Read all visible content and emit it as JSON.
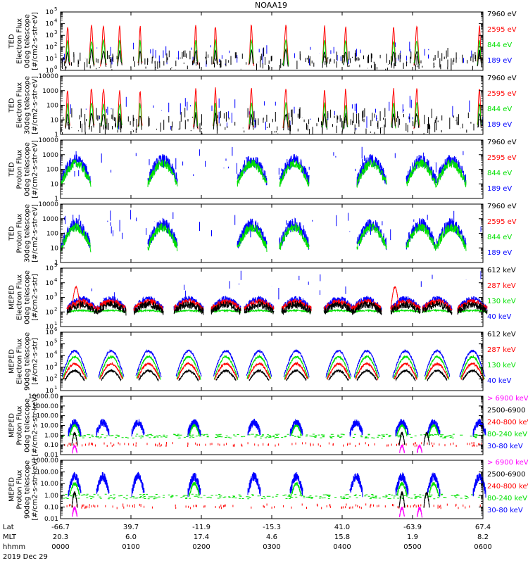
{
  "title": "NOAA19",
  "colors": {
    "black": "#000000",
    "red": "#ff0000",
    "green": "#00e000",
    "blue": "#0000ff",
    "magenta": "#ff00ff"
  },
  "chart_data": {
    "type": "line",
    "title": "NOAA19",
    "time_axis": {
      "row_labels": [
        "Lat",
        "MLT",
        "hhmm"
      ],
      "date": "2019 Dec 29",
      "ticks": [
        {
          "lat": "-66.7",
          "mlt": "20.3",
          "hhmm": "0000"
        },
        {
          "lat": "39.7",
          "mlt": "6.0",
          "hhmm": "0100"
        },
        {
          "lat": "-11.9",
          "mlt": "17.4",
          "hhmm": "0200"
        },
        {
          "lat": "-15.3",
          "mlt": "4.6",
          "hhmm": "0300"
        },
        {
          "lat": "41.0",
          "mlt": "15.8",
          "hhmm": "0400"
        },
        {
          "lat": "-63.9",
          "mlt": "1.9",
          "hhmm": "0500"
        },
        {
          "lat": "67.4",
          "mlt": "8.2",
          "hhmm": "0600"
        }
      ]
    },
    "panels": [
      {
        "ylabel": [
          "TED",
          "Electron Flux",
          "0deg telescope",
          "[#/cm2-s-str-eV]"
        ],
        "yscale": "log",
        "ylim_exp": [
          0,
          5
        ],
        "ticks": [
          {
            "exp": 0,
            "label": "10",
            "sup": "0"
          },
          {
            "exp": 1,
            "label": "10",
            "sup": "1"
          },
          {
            "exp": 2,
            "label": "10",
            "sup": "2"
          },
          {
            "exp": 3,
            "label": "10",
            "sup": "3"
          },
          {
            "exp": 4,
            "label": "10",
            "sup": "4"
          },
          {
            "exp": 5,
            "label": "10",
            "sup": "5"
          }
        ],
        "legend": [
          {
            "label": "7960 eV",
            "color": "#000000"
          },
          {
            "label": "2595 eV",
            "color": "#ff0000"
          },
          {
            "label": "844 eV",
            "color": "#00e000"
          },
          {
            "label": "189 eV",
            "color": "#0000ff"
          }
        ]
      },
      {
        "ylabel": [
          "TED",
          "Electron Flux",
          "30deg telescope",
          "[#/cm2-s-str-eV]"
        ],
        "yscale": "log",
        "ylim_exp": [
          0,
          4
        ],
        "ticks": [
          {
            "exp": 0,
            "label": "1"
          },
          {
            "exp": 1,
            "label": "10"
          },
          {
            "exp": 2,
            "label": "100"
          },
          {
            "exp": 3,
            "label": "1000"
          },
          {
            "exp": 4,
            "label": "10000"
          }
        ],
        "legend": [
          {
            "label": "7960 eV",
            "color": "#000000"
          },
          {
            "label": "2595 eV",
            "color": "#ff0000"
          },
          {
            "label": "844 eV",
            "color": "#00e000"
          },
          {
            "label": "189 eV",
            "color": "#0000ff"
          }
        ]
      },
      {
        "ylabel": [
          "TED",
          "Proton Flux",
          "0deg telescope",
          "[#/cm2-s-str-eV]"
        ],
        "yscale": "log",
        "ylim_exp": [
          0,
          4
        ],
        "ticks": [
          {
            "exp": 0,
            "label": "1"
          },
          {
            "exp": 1,
            "label": "10"
          },
          {
            "exp": 2,
            "label": "100"
          },
          {
            "exp": 3,
            "label": "1000"
          },
          {
            "exp": 4,
            "label": "10000"
          }
        ],
        "legend": [
          {
            "label": "7960 eV",
            "color": "#000000"
          },
          {
            "label": "2595 eV",
            "color": "#ff0000"
          },
          {
            "label": "844 eV",
            "color": "#00e000"
          },
          {
            "label": "189 eV",
            "color": "#0000ff"
          }
        ]
      },
      {
        "ylabel": [
          "TED",
          "Proton Flux",
          "30deg telescope",
          "[#/cm2-s-str-eV]"
        ],
        "yscale": "log",
        "ylim_exp": [
          0,
          4
        ],
        "ticks": [
          {
            "exp": 0,
            "label": "1"
          },
          {
            "exp": 1,
            "label": "10"
          },
          {
            "exp": 2,
            "label": "100"
          },
          {
            "exp": 3,
            "label": "1000"
          },
          {
            "exp": 4,
            "label": "10000"
          }
        ],
        "legend": [
          {
            "label": "7960 eV",
            "color": "#000000"
          },
          {
            "label": "2595 eV",
            "color": "#ff0000"
          },
          {
            "label": "844 eV",
            "color": "#00e000"
          },
          {
            "label": "189 eV",
            "color": "#0000ff"
          }
        ]
      },
      {
        "ylabel": [
          "MEPED",
          "Electron Flux",
          "0deg telescope",
          "[#/cm2-s-str]"
        ],
        "yscale": "log",
        "ylim_exp": [
          1,
          5
        ],
        "ticks": [
          {
            "exp": 1,
            "label": "10",
            "sup": "1"
          },
          {
            "exp": 2,
            "label": "10",
            "sup": "2"
          },
          {
            "exp": 3,
            "label": "10",
            "sup": "3"
          },
          {
            "exp": 4,
            "label": "10",
            "sup": "4"
          },
          {
            "exp": 5,
            "label": "10",
            "sup": "5"
          }
        ],
        "legend": [
          {
            "label": "612 keV",
            "color": "#000000"
          },
          {
            "label": "287 keV",
            "color": "#ff0000"
          },
          {
            "label": "130 keV",
            "color": "#00e000"
          },
          {
            "label": "40 keV",
            "color": "#0000ff"
          }
        ]
      },
      {
        "ylabel": [
          "MEPED",
          "Electron Flux",
          "90deg telescope",
          "[#/cm2-s-str]"
        ],
        "yscale": "log",
        "ylim_exp": [
          1,
          6
        ],
        "ticks": [
          {
            "exp": 1,
            "label": "10",
            "sup": "1"
          },
          {
            "exp": 2,
            "label": "10",
            "sup": "2"
          },
          {
            "exp": 3,
            "label": "10",
            "sup": "3"
          },
          {
            "exp": 4,
            "label": "10",
            "sup": "4"
          },
          {
            "exp": 5,
            "label": "10",
            "sup": "5"
          },
          {
            "exp": 6,
            "label": "10",
            "sup": "6"
          }
        ],
        "legend": [
          {
            "label": "612 keV",
            "color": "#000000"
          },
          {
            "label": "287 keV",
            "color": "#ff0000"
          },
          {
            "label": "130 keV",
            "color": "#00e000"
          },
          {
            "label": "40 keV",
            "color": "#0000ff"
          }
        ]
      },
      {
        "ylabel": [
          "MEPED",
          "Proton Flux",
          "0deg telescope",
          "[#/cm2-s-str-keV]"
        ],
        "yscale": "log",
        "ylim_exp": [
          -2,
          4
        ],
        "ticks": [
          {
            "exp": -2,
            "label": "0.01"
          },
          {
            "exp": -1,
            "label": "0.10"
          },
          {
            "exp": 0,
            "label": "1.00"
          },
          {
            "exp": 1,
            "label": "10.00"
          },
          {
            "exp": 2,
            "label": "100.00"
          },
          {
            "exp": 3,
            "label": "1000.00"
          },
          {
            "exp": 4,
            "label": "10000.00"
          }
        ],
        "legend": [
          {
            "label": "> 6900 keV",
            "color": "#ff00ff"
          },
          {
            "label": "2500-6900",
            "color": "#000000"
          },
          {
            "label": "240-800 keV",
            "color": "#ff0000"
          },
          {
            "label": "80-240 keV",
            "color": "#00e000"
          },
          {
            "label": "30-80 keV",
            "color": "#0000ff"
          }
        ]
      },
      {
        "ylabel": [
          "MEPED",
          "Proton Flux",
          "90deg telescope",
          "[#/cm2-s-str-keV]"
        ],
        "yscale": "log",
        "ylim_exp": [
          -2,
          3
        ],
        "ticks": [
          {
            "exp": -2,
            "label": "0.01"
          },
          {
            "exp": -1,
            "label": "0.10"
          },
          {
            "exp": 0,
            "label": "1.00"
          },
          {
            "exp": 1,
            "label": "10.00"
          },
          {
            "exp": 2,
            "label": "100.00"
          },
          {
            "exp": 3,
            "label": "1000.00"
          }
        ],
        "legend": [
          {
            "label": "> 6900 keV",
            "color": "#ff00ff"
          },
          {
            "label": "2500-6900",
            "color": "#000000"
          },
          {
            "label": "240-800 keV",
            "color": "#ff0000"
          },
          {
            "label": "80-240 keV",
            "color": "#00e000"
          },
          {
            "label": "30-80 keV",
            "color": "#0000ff"
          }
        ]
      }
    ]
  }
}
